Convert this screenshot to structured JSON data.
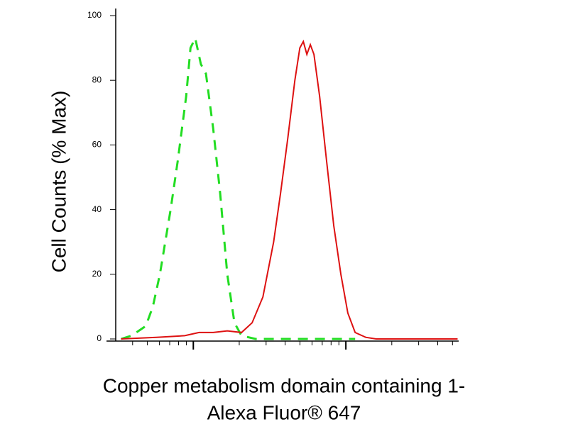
{
  "chart_data": {
    "type": "line",
    "log_x": true,
    "ylabel": "Cell Counts (% Max)",
    "xlabel": [
      "Copper metabolism domain containing 1-",
      "Alexa Fluor® 647"
    ],
    "xlim": [
      3.1,
      543
    ],
    "xticks": [
      10,
      100
    ],
    "xminorticks": [
      4,
      5,
      6,
      7,
      8,
      9,
      20,
      30,
      40,
      50,
      60,
      70,
      80,
      90,
      200,
      300,
      400,
      500
    ],
    "ylim": [
      0,
      100
    ],
    "yticks": [
      0,
      20,
      40,
      60,
      80,
      100
    ],
    "series": [
      {
        "color": "#22dd22",
        "dash": true,
        "x": [
          3.36,
          3.94,
          4.88,
          5.43,
          6.04,
          7.1,
          7.9,
          8.98,
          9.58,
          10.3,
          11.2,
          12.1,
          13.5,
          15.0,
          16.7,
          18.6,
          20.7,
          25.6,
          39.4,
          67.3,
          115
        ],
        "values": [
          0,
          1,
          4,
          10,
          20,
          40,
          55,
          75,
          90,
          93,
          85,
          82,
          65,
          45,
          20,
          5,
          1,
          0,
          0,
          0,
          0
        ]
      },
      {
        "color": "#dd1111",
        "dash": false,
        "x": [
          3.36,
          5.73,
          8.79,
          10.9,
          13.5,
          16.7,
          20.7,
          24.3,
          28.6,
          33.6,
          37.3,
          41.6,
          46.3,
          49.9,
          52.6,
          55.5,
          58.5,
          61.8,
          67.3,
          74.8,
          83.3,
          92.7,
          103,
          115,
          135,
          158,
          540
        ],
        "values": [
          0,
          0.5,
          1,
          2,
          2,
          2.5,
          2,
          5,
          13,
          30,
          45,
          62,
          80,
          90,
          92,
          88,
          91,
          88,
          75,
          55,
          35,
          20,
          8,
          2,
          0.5,
          0,
          0
        ]
      }
    ]
  }
}
